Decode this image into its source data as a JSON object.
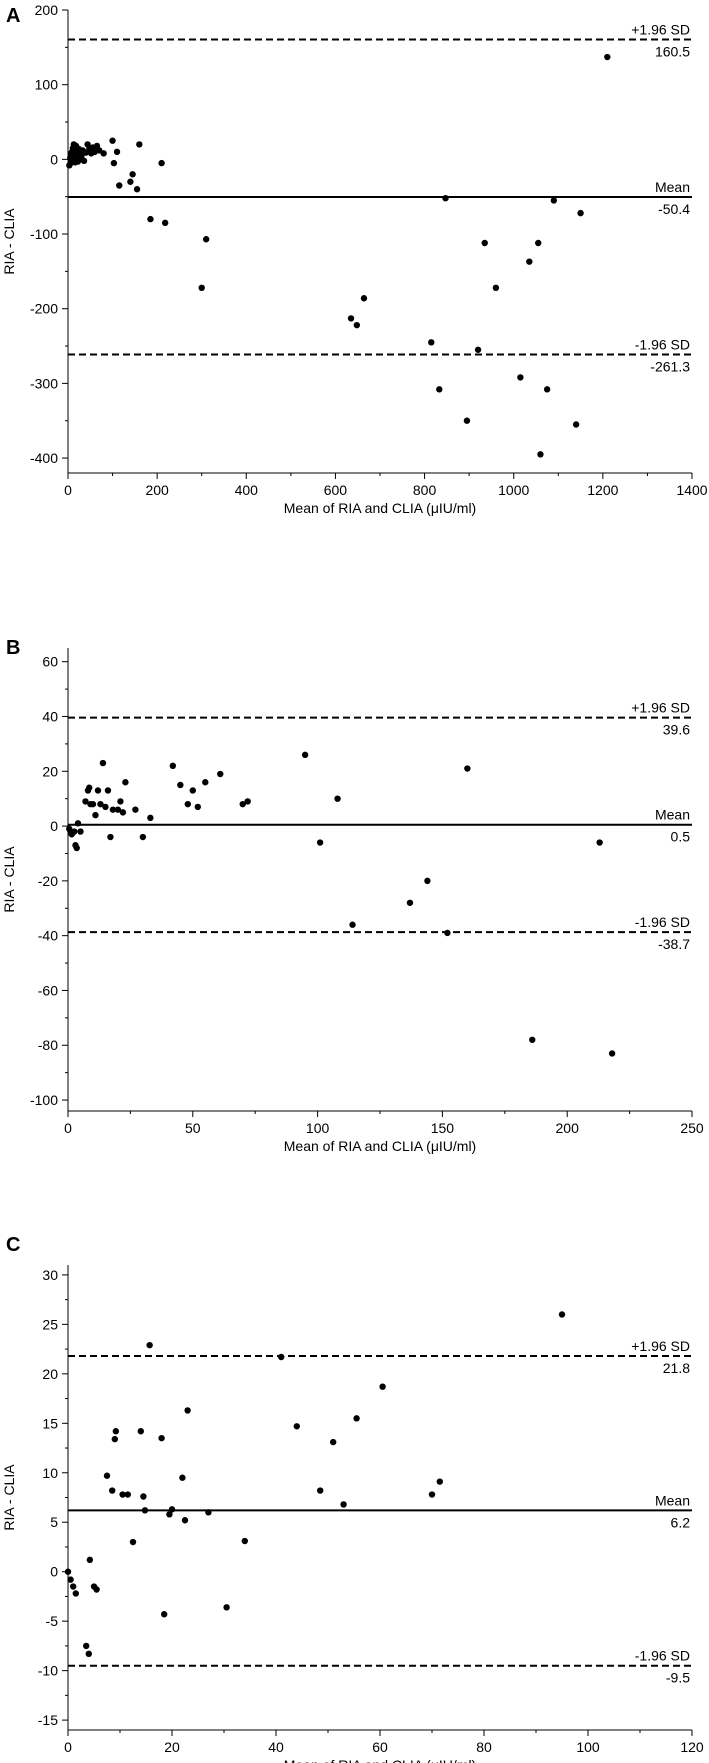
{
  "chart_data": [
    {
      "panel": "A",
      "type": "scatter",
      "xlabel": "Mean of RIA and CLIA (μIU/ml)",
      "ylabel": "RIA - CLIA",
      "xlim": [
        0,
        1400
      ],
      "ylim": [
        -420,
        200
      ],
      "xticks": [
        0,
        200,
        400,
        600,
        800,
        1000,
        1200,
        1400
      ],
      "yticks": [
        -400,
        -300,
        -200,
        -100,
        0,
        100,
        200
      ],
      "reference_lines": [
        {
          "name": "+1.96 SD",
          "value": 160.5,
          "value_label": "160.5",
          "style": "dashed"
        },
        {
          "name": "Mean",
          "value": -50.4,
          "value_label": "-50.4",
          "style": "solid"
        },
        {
          "name": "-1.96 SD",
          "value": -261.3,
          "value_label": "-261.3",
          "style": "dashed"
        }
      ],
      "points": [
        [
          3,
          -8
        ],
        [
          5,
          2
        ],
        [
          6,
          -5
        ],
        [
          7,
          8
        ],
        [
          8,
          3
        ],
        [
          9,
          10
        ],
        [
          10,
          -2
        ],
        [
          11,
          15
        ],
        [
          12,
          5
        ],
        [
          13,
          20
        ],
        [
          14,
          0
        ],
        [
          15,
          12
        ],
        [
          16,
          -4
        ],
        [
          17,
          7
        ],
        [
          18,
          18
        ],
        [
          19,
          2
        ],
        [
          20,
          10
        ],
        [
          22,
          -3
        ],
        [
          24,
          14
        ],
        [
          26,
          6
        ],
        [
          28,
          0
        ],
        [
          30,
          4
        ],
        [
          33,
          12
        ],
        [
          36,
          -2
        ],
        [
          40,
          9
        ],
        [
          44,
          20
        ],
        [
          48,
          14
        ],
        [
          52,
          8
        ],
        [
          56,
          16
        ],
        [
          60,
          10
        ],
        [
          65,
          18
        ],
        [
          70,
          12
        ],
        [
          80,
          8
        ],
        [
          100,
          25
        ],
        [
          103,
          -5
        ],
        [
          110,
          10
        ],
        [
          115,
          -35
        ],
        [
          140,
          -30
        ],
        [
          145,
          -20
        ],
        [
          155,
          -40
        ],
        [
          160,
          20
        ],
        [
          185,
          -80
        ],
        [
          210,
          -5
        ],
        [
          218,
          -85
        ],
        [
          300,
          -172
        ],
        [
          310,
          -107
        ],
        [
          635,
          -213
        ],
        [
          648,
          -222
        ],
        [
          664,
          -186
        ],
        [
          815,
          -245
        ],
        [
          833,
          -308
        ],
        [
          847,
          -52
        ],
        [
          920,
          -255
        ],
        [
          935,
          -112
        ],
        [
          960,
          -172
        ],
        [
          1015,
          -292
        ],
        [
          1035,
          -137
        ],
        [
          1055,
          -112
        ],
        [
          1060,
          -395
        ],
        [
          1075,
          -308
        ],
        [
          1090,
          -55
        ],
        [
          1140,
          -355
        ],
        [
          1150,
          -72
        ],
        [
          1210,
          137
        ],
        [
          895,
          -350
        ]
      ]
    },
    {
      "panel": "B",
      "type": "scatter",
      "xlabel": "Mean of RIA and CLIA (μIU/ml)",
      "ylabel": "RIA - CLIA",
      "xlim": [
        0,
        250
      ],
      "ylim": [
        -104,
        65
      ],
      "xticks": [
        0,
        50,
        100,
        150,
        200,
        250
      ],
      "yticks": [
        -100,
        -80,
        -60,
        -40,
        -20,
        0,
        20,
        40,
        60
      ],
      "reference_lines": [
        {
          "name": "+1.96 SD",
          "value": 39.6,
          "value_label": "39.6",
          "style": "dashed"
        },
        {
          "name": "Mean",
          "value": 0.5,
          "value_label": "0.5",
          "style": "solid"
        },
        {
          "name": "-1.96 SD",
          "value": -38.7,
          "value_label": "-38.7",
          "style": "dashed"
        }
      ],
      "points": [
        [
          0.5,
          -1
        ],
        [
          1,
          -2
        ],
        [
          1.5,
          -3
        ],
        [
          2.5,
          -2
        ],
        [
          3,
          -7
        ],
        [
          3.5,
          -8
        ],
        [
          4,
          1
        ],
        [
          5,
          -2
        ],
        [
          7,
          9
        ],
        [
          8,
          13
        ],
        [
          8.5,
          14
        ],
        [
          9,
          8
        ],
        [
          10,
          8
        ],
        [
          11,
          4
        ],
        [
          12,
          13
        ],
        [
          13,
          8
        ],
        [
          14,
          23
        ],
        [
          15,
          7
        ],
        [
          16,
          13
        ],
        [
          17,
          -4
        ],
        [
          18,
          6
        ],
        [
          20,
          6
        ],
        [
          21,
          9
        ],
        [
          22,
          5
        ],
        [
          23,
          16
        ],
        [
          27,
          6
        ],
        [
          30,
          -4
        ],
        [
          33,
          3
        ],
        [
          42,
          22
        ],
        [
          45,
          15
        ],
        [
          48,
          8
        ],
        [
          50,
          13
        ],
        [
          52,
          7
        ],
        [
          55,
          16
        ],
        [
          61,
          19
        ],
        [
          70,
          8
        ],
        [
          72,
          9
        ],
        [
          95,
          26
        ],
        [
          101,
          -6
        ],
        [
          108,
          10
        ],
        [
          114,
          -36
        ],
        [
          137,
          -28
        ],
        [
          144,
          -20
        ],
        [
          152,
          -39
        ],
        [
          160,
          21
        ],
        [
          186,
          -78
        ],
        [
          213,
          -6
        ],
        [
          218,
          -83
        ]
      ]
    },
    {
      "panel": "C",
      "type": "scatter",
      "xlabel": "Mean of RIA and CLIA (μIU/ml)",
      "ylabel": "RIA - CLIA",
      "xlim": [
        0,
        120
      ],
      "ylim": [
        -16,
        31
      ],
      "xticks": [
        0,
        20,
        40,
        60,
        80,
        100,
        120
      ],
      "yticks": [
        -15,
        -10,
        -5,
        0,
        5,
        10,
        15,
        20,
        25,
        30
      ],
      "reference_lines": [
        {
          "name": "+1.96 SD",
          "value": 21.8,
          "value_label": "21.8",
          "style": "dashed"
        },
        {
          "name": "Mean",
          "value": 6.2,
          "value_label": "6.2",
          "style": "solid"
        },
        {
          "name": "-1.96 SD",
          "value": -9.5,
          "value_label": "-9.5",
          "style": "dashed"
        }
      ],
      "points": [
        [
          0,
          0
        ],
        [
          0.5,
          -0.8
        ],
        [
          1,
          -1.5
        ],
        [
          1.5,
          -2.2
        ],
        [
          3.5,
          -7.5
        ],
        [
          4,
          -8.3
        ],
        [
          4.2,
          1.2
        ],
        [
          5,
          -1.5
        ],
        [
          5.5,
          -1.8
        ],
        [
          7.5,
          9.7
        ],
        [
          8.5,
          8.2
        ],
        [
          9,
          13.4
        ],
        [
          9.2,
          14.2
        ],
        [
          10.5,
          7.8
        ],
        [
          11.5,
          7.8
        ],
        [
          12.5,
          3
        ],
        [
          14,
          14.2
        ],
        [
          14.5,
          7.6
        ],
        [
          14.8,
          6.2
        ],
        [
          15.7,
          22.9
        ],
        [
          18,
          13.5
        ],
        [
          18.5,
          -4.3
        ],
        [
          19.5,
          5.8
        ],
        [
          20,
          6.3
        ],
        [
          22,
          9.5
        ],
        [
          22.5,
          5.2
        ],
        [
          23,
          16.3
        ],
        [
          27,
          6
        ],
        [
          30.5,
          -3.6
        ],
        [
          34,
          3.1
        ],
        [
          41,
          21.7
        ],
        [
          44,
          14.7
        ],
        [
          48.5,
          8.2
        ],
        [
          51,
          13.1
        ],
        [
          53,
          6.8
        ],
        [
          55.5,
          15.5
        ],
        [
          60.5,
          18.7
        ],
        [
          70,
          7.8
        ],
        [
          71.5,
          9.1
        ],
        [
          95,
          26
        ]
      ]
    }
  ]
}
